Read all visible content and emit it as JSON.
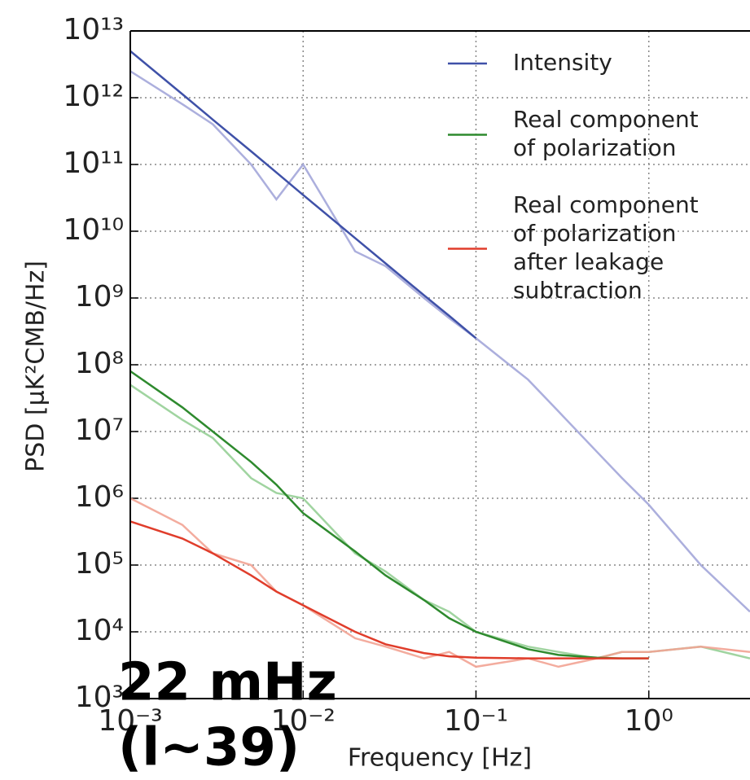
{
  "chart_data": {
    "type": "line",
    "xlabel": "Frequency [Hz]",
    "ylabel": "PSD [μK²CMB/Hz]",
    "annotations": [
      "22 mHz",
      "(l~39)"
    ],
    "log_x": true,
    "log_y": true,
    "grid": true,
    "legend": "upper right",
    "xlim": [
      0.001,
      3.85
    ],
    "ylim": [
      1000,
      10000000000000
    ],
    "xticks": [
      {
        "value": 0.001,
        "label": "10⁻³"
      },
      {
        "value": 0.01,
        "label": "10⁻²"
      },
      {
        "value": 0.1,
        "label": "10⁻¹"
      },
      {
        "value": 1,
        "label": "10⁰"
      }
    ],
    "yticks": [
      {
        "value": 1000,
        "label": "10³"
      },
      {
        "value": 10000,
        "label": "10⁴"
      },
      {
        "value": 100000,
        "label": "10⁵"
      },
      {
        "value": 1000000,
        "label": "10⁶"
      },
      {
        "value": 10000000,
        "label": "10⁷"
      },
      {
        "value": 100000000,
        "label": "10⁸"
      },
      {
        "value": 1000000000,
        "label": "10⁹"
      },
      {
        "value": 10000000000,
        "label": "10¹⁰"
      },
      {
        "value": 100000000000,
        "label": "10¹¹"
      },
      {
        "value": 1000000000000,
        "label": "10¹²"
      },
      {
        "value": 10000000000000,
        "label": "10¹³"
      }
    ],
    "x": [
      0.001,
      0.002,
      0.003,
      0.005,
      0.007,
      0.01,
      0.02,
      0.03,
      0.05,
      0.07,
      0.1,
      0.2,
      0.3,
      0.5,
      0.7,
      1,
      2,
      3.85
    ],
    "series": [
      {
        "name": "Intensity",
        "color": "#3f51a8",
        "raw_color": "#a3a6d9",
        "values": [
          5000000000000.0,
          1130000000000.0,
          470000000000.0,
          157000000000.0,
          76000000000.0,
          35000000000.0,
          7900000000.0,
          3300000000.0,
          1100000000.0,
          540000000.0,
          250000000.0,
          null,
          null,
          null,
          null,
          null,
          null,
          null
        ],
        "raw": [
          2500000000000.0,
          800000000000.0,
          400000000000.0,
          100000000000.0,
          30000000000.0,
          100000000000.0,
          5000000000.0,
          3000000000.0,
          1000000000.0,
          500000000.0,
          250000000.0,
          60000000.0,
          20000000.0,
          5000000.0,
          2000000.0,
          800000.0,
          100000.0,
          20000.0
        ]
      },
      {
        "name": "Real component\nof polarization",
        "color": "#2e8a2e",
        "raw_color": "#96cf96",
        "values": [
          80000000.0,
          23000000.0,
          10000000.0,
          3500000.0,
          1600000.0,
          600000.0,
          160000.0,
          70000.0,
          30000.0,
          16000.0,
          10000.0,
          5500,
          4500,
          4100,
          4000,
          4000,
          null,
          null
        ],
        "raw": [
          50000000.0,
          15000000.0,
          8000000.0,
          2000000.0,
          1200000.0,
          1000000.0,
          150000.0,
          80000.0,
          30000.0,
          20000.0,
          10000.0,
          6000,
          5000,
          4000,
          5000,
          5000,
          6000,
          4000
        ]
      },
      {
        "name": "Real component\nof polarization\nafter leakage\nsubtraction",
        "color": "#e03d2b",
        "raw_color": "#f2a394",
        "values": [
          450000.0,
          250000.0,
          150000.0,
          70000.0,
          40000.0,
          25000.0,
          10000.0,
          6500,
          4800,
          4300,
          4100,
          4000,
          4000,
          4000,
          4000,
          4000,
          null,
          null
        ],
        "raw": [
          1000000.0,
          400000.0,
          150000.0,
          100000.0,
          40000.0,
          25000.0,
          8000,
          6000,
          4000,
          5000,
          3000,
          4000,
          3000,
          4000,
          5000,
          5000,
          6000,
          5000
        ]
      }
    ]
  }
}
